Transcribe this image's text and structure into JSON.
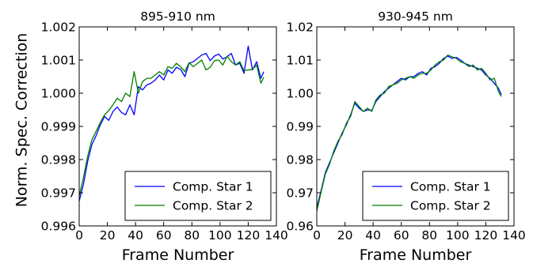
{
  "figure": {
    "ylabel": "Norm. Spec. Correction"
  },
  "chart_data": [
    {
      "type": "line",
      "title": "895-910 nm",
      "xlabel": "Frame Number",
      "ylabel": "Norm. Spec. Correction",
      "xlim": [
        0,
        140
      ],
      "ylim": [
        0.996,
        1.002
      ],
      "xticks": [
        0,
        20,
        40,
        60,
        80,
        100,
        120,
        140
      ],
      "xtick_labels": [
        "0",
        "20",
        "40",
        "60",
        "80",
        "100",
        "120",
        "140"
      ],
      "yticks": [
        0.996,
        0.997,
        0.998,
        0.999,
        1.0,
        1.001,
        1.002
      ],
      "ytick_labels": [
        "0.996",
        "0.997",
        "0.998",
        "0.999",
        "1.000",
        "1.001",
        "1.002"
      ],
      "grid": false,
      "legend": "lower-right",
      "series": [
        {
          "name": "Comp. Star 1",
          "color": "#0000ff",
          "x": [
            0,
            3,
            6,
            9,
            12,
            15,
            18,
            21,
            24,
            27,
            30,
            33,
            36,
            39,
            42,
            45,
            48,
            51,
            54,
            57,
            60,
            63,
            66,
            69,
            72,
            75,
            78,
            81,
            84,
            87,
            90,
            93,
            96,
            99,
            102,
            105,
            108,
            111,
            114,
            117,
            120,
            123,
            126,
            129,
            131
          ],
          "y": [
            0.99675,
            0.99725,
            0.99795,
            0.99845,
            0.99872,
            0.99905,
            0.9993,
            0.99918,
            0.99945,
            0.99958,
            0.99942,
            0.99935,
            0.99965,
            0.99935,
            1.0002,
            1.0001,
            1.00025,
            1.0003,
            1.0004,
            1.00055,
            1.0004,
            1.0007,
            1.0006,
            1.00078,
            1.00072,
            1.0005,
            1.0009,
            1.00095,
            1.00105,
            1.00115,
            1.0012,
            1.00098,
            1.00112,
            1.00118,
            1.00103,
            1.0011,
            1.0012,
            1.00085,
            1.0009,
            1.0006,
            1.00142,
            1.0007,
            1.00095,
            1.00045,
            1.00065
          ]
        },
        {
          "name": "Comp. Star 2",
          "color": "#008000",
          "x": [
            0,
            3,
            6,
            9,
            12,
            15,
            18,
            21,
            24,
            27,
            30,
            33,
            36,
            39,
            42,
            45,
            48,
            51,
            54,
            57,
            60,
            63,
            66,
            69,
            72,
            75,
            78,
            81,
            84,
            87,
            90,
            93,
            96,
            99,
            102,
            105,
            108,
            111,
            114,
            117,
            120,
            123,
            126,
            129,
            131
          ],
          "y": [
            0.9969,
            0.99745,
            0.9981,
            0.9986,
            0.99885,
            0.99912,
            0.99935,
            0.99948,
            0.99965,
            0.99985,
            0.99975,
            1.0,
            0.9999,
            1.00065,
            1.0,
            1.00035,
            1.00045,
            1.00045,
            1.00055,
            1.00065,
            1.00055,
            1.0008,
            1.00075,
            1.0009,
            1.0008,
            1.00065,
            1.00092,
            1.0008,
            1.0009,
            1.001,
            1.0007,
            1.00078,
            1.00098,
            1.001,
            1.00085,
            1.00112,
            1.00095,
            1.00085,
            1.00095,
            1.00068,
            1.0007,
            1.00072,
            1.00085,
            1.0003,
            1.00048
          ]
        }
      ]
    },
    {
      "type": "line",
      "title": "930-945 nm",
      "xlabel": "Frame Number",
      "ylabel": "",
      "xlim": [
        0,
        140
      ],
      "ylim": [
        0.96,
        1.02
      ],
      "xticks": [
        0,
        20,
        40,
        60,
        80,
        100,
        120,
        140
      ],
      "xtick_labels": [
        "0",
        "20",
        "40",
        "60",
        "80",
        "100",
        "120",
        "140"
      ],
      "yticks": [
        0.96,
        0.97,
        0.98,
        0.99,
        1.0,
        1.01,
        1.02
      ],
      "ytick_labels": [
        "0.96",
        "0.97",
        "0.98",
        "0.99",
        "1.00",
        "1.01",
        "1.02"
      ],
      "grid": false,
      "legend": "lower-right",
      "series": [
        {
          "name": "Comp. Star 1",
          "color": "#0000ff",
          "x": [
            0,
            3,
            6,
            9,
            12,
            15,
            18,
            21,
            24,
            27,
            30,
            33,
            36,
            39,
            42,
            45,
            48,
            51,
            54,
            57,
            60,
            63,
            66,
            69,
            72,
            75,
            78,
            81,
            84,
            87,
            90,
            93,
            96,
            99,
            102,
            105,
            108,
            111,
            114,
            117,
            120,
            123,
            126,
            129,
            131
          ],
          "y": [
            0.9655,
            0.9705,
            0.976,
            0.979,
            0.982,
            0.985,
            0.988,
            0.9905,
            0.9935,
            0.997,
            0.9955,
            0.9945,
            0.995,
            0.9948,
            0.9975,
            0.999,
            1.0005,
            1.0015,
            1.0025,
            1.0035,
            1.0045,
            1.004,
            1.005,
            1.005,
            1.006,
            1.0065,
            1.0055,
            1.0075,
            1.008,
            1.009,
            1.0105,
            1.0112,
            1.0105,
            1.0108,
            1.01,
            1.009,
            1.0085,
            1.008,
            1.0075,
            1.007,
            1.0055,
            1.0045,
            1.003,
            1.0015,
            0.9995
          ]
        },
        {
          "name": "Comp. Star 2",
          "color": "#008000",
          "x": [
            0,
            3,
            6,
            9,
            12,
            15,
            18,
            21,
            24,
            27,
            30,
            33,
            36,
            39,
            42,
            45,
            48,
            51,
            54,
            57,
            60,
            63,
            66,
            69,
            72,
            75,
            78,
            81,
            84,
            87,
            90,
            93,
            96,
            99,
            102,
            105,
            108,
            111,
            114,
            117,
            120,
            123,
            126,
            129,
            131
          ],
          "y": [
            0.9645,
            0.97,
            0.9755,
            0.9785,
            0.9825,
            0.9855,
            0.9875,
            0.991,
            0.993,
            0.9975,
            0.996,
            0.9945,
            0.9955,
            0.9945,
            0.998,
            0.9995,
            1.0,
            1.002,
            1.0025,
            1.003,
            1.004,
            1.0045,
            1.005,
            1.0045,
            1.0055,
            1.006,
            1.006,
            1.007,
            1.0085,
            1.0095,
            1.01,
            1.0115,
            1.011,
            1.0105,
            1.0095,
            1.009,
            1.008,
            1.0085,
            1.007,
            1.0075,
            1.006,
            1.004,
            1.0045,
            1.0005,
            0.999
          ]
        }
      ]
    }
  ]
}
